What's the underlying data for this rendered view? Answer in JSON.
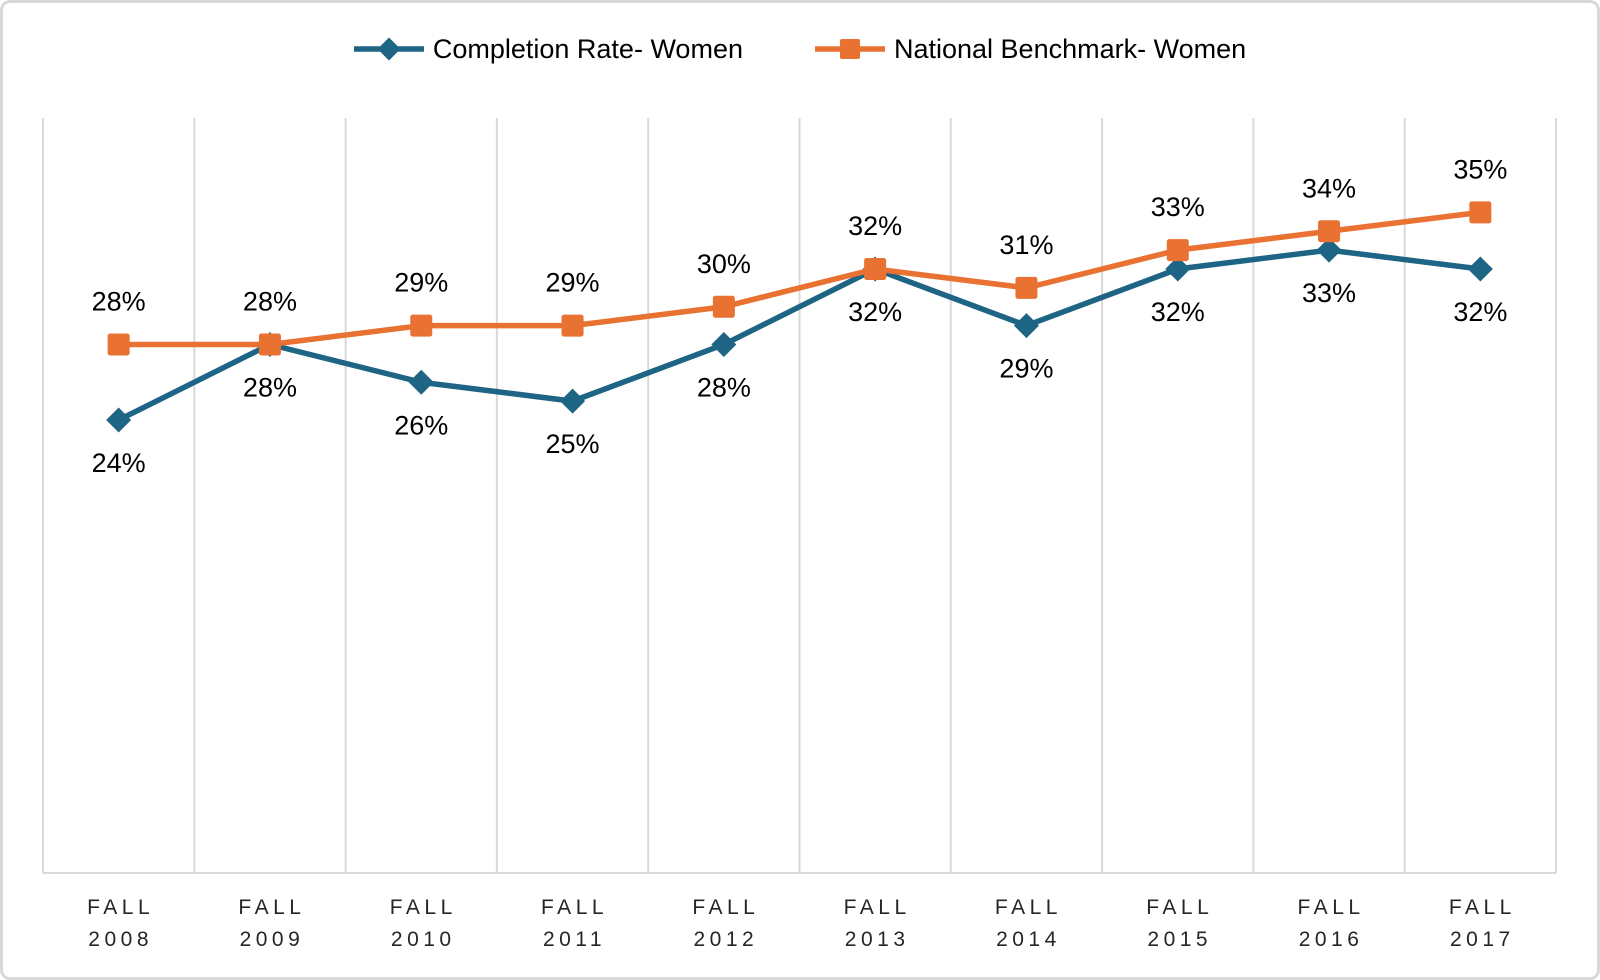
{
  "chart_data": {
    "type": "line",
    "categories": [
      "FALL 2008",
      "FALL 2009",
      "FALL 2010",
      "FALL 2011",
      "FALL 2012",
      "FALL 2013",
      "FALL 2014",
      "FALL 2015",
      "FALL 2016",
      "FALL 2017"
    ],
    "series": [
      {
        "name": "Completion Rate- Women",
        "values": [
          24,
          28,
          26,
          25,
          28,
          32,
          29,
          32,
          33,
          32
        ],
        "data_labels": [
          "24%",
          "28%",
          "26%",
          "25%",
          "28%",
          "32%",
          "29%",
          "32%",
          "33%",
          "32%"
        ],
        "color": "#1E6484",
        "marker": "diamond",
        "label_position": "below"
      },
      {
        "name": "National Benchmark- Women",
        "values": [
          28,
          28,
          29,
          29,
          30,
          32,
          31,
          33,
          34,
          35
        ],
        "data_labels": [
          "28%",
          "28%",
          "29%",
          "29%",
          "30%",
          "32%",
          "31%",
          "33%",
          "34%",
          "35%"
        ],
        "color": "#E97132",
        "marker": "square",
        "label_position": "above"
      }
    ],
    "title": "",
    "xlabel": "",
    "ylabel": "",
    "ylim": [
      0,
      40
    ],
    "grid": "vertical-only",
    "legend_position": "top-center",
    "data_label_format": "{value}%"
  },
  "colors": {
    "series_completion": "#1E6484",
    "series_benchmark": "#E97132",
    "gridline": "#D9D9D9",
    "axis_line": "#D9D9D9",
    "data_label_text": "#000000",
    "axis_label_text": "#262626",
    "frame_border": "#D9D9D9",
    "background": "#FFFFFF"
  }
}
